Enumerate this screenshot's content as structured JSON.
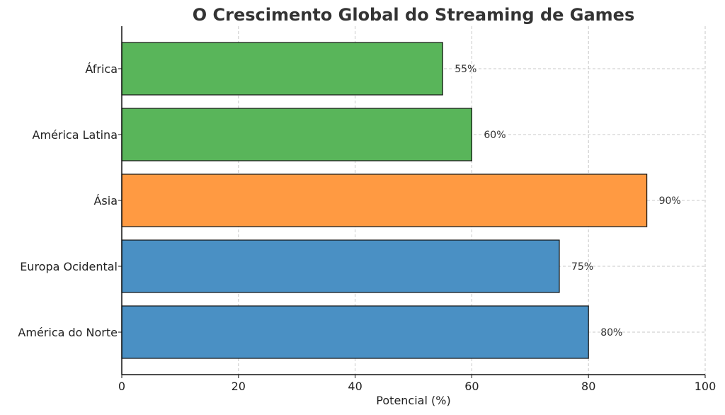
{
  "chart_data": {
    "type": "bar",
    "orientation": "horizontal",
    "title": "O Crescimento Global do Streaming de Games",
    "xlabel": "Potencial (%)",
    "ylabel": "",
    "xlim": [
      0,
      100
    ],
    "xticks": [
      0,
      20,
      40,
      60,
      80,
      100
    ],
    "grid": true,
    "categories": [
      "América do Norte",
      "Europa Ocidental",
      "Ásia",
      "América Latina",
      "África"
    ],
    "values": [
      80,
      75,
      90,
      60,
      55
    ],
    "data_labels": [
      "80%",
      "75%",
      "90%",
      "60%",
      "55%"
    ],
    "bar_colors": [
      "#4a90c4",
      "#4a90c4",
      "#ff9a42",
      "#59b55a",
      "#59b55a"
    ]
  }
}
